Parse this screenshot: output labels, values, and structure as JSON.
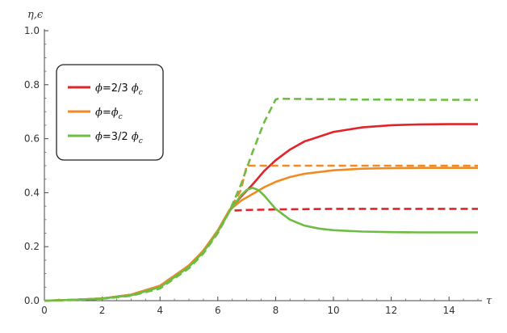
{
  "chart_data": {
    "type": "line",
    "title": "",
    "xlabel": "τ",
    "ylabel": "η,ϵ",
    "xlim": [
      0,
      15
    ],
    "ylim": [
      0,
      1.0
    ],
    "x_ticks": [
      0,
      2,
      4,
      6,
      8,
      10,
      12,
      14
    ],
    "x_tick_labels": [
      "0",
      "2",
      "4",
      "6",
      "8",
      "10",
      "12",
      "14"
    ],
    "y_ticks": [
      0,
      0.2,
      0.4,
      0.6,
      0.8,
      1.0
    ],
    "y_tick_labels": [
      "0.0",
      "0.2",
      "0.4",
      "0.6",
      "0.8",
      "1.0"
    ],
    "grid": false,
    "legend_position": "top-left",
    "legend": [
      {
        "var": "ϕ",
        "eq": "=2/3 ",
        "sym": "ϕ",
        "sub": "c",
        "color": "#e0242a"
      },
      {
        "var": "ϕ",
        "eq": "=",
        "sym": "ϕ",
        "sub": "c",
        "color": "#f28a24"
      },
      {
        "var": "ϕ",
        "eq": "=3/2 ",
        "sym": "ϕ",
        "sub": "c",
        "color": "#6ebc43"
      }
    ],
    "series": [
      {
        "color": "#e0242a",
        "style": "solid",
        "x": [
          0,
          1,
          2,
          3,
          4,
          5,
          5.5,
          6,
          6.4,
          6.8,
          7.2,
          7.6,
          8,
          8.5,
          9,
          10,
          11,
          12,
          13,
          14,
          15
        ],
        "y": [
          0.0,
          0.003,
          0.008,
          0.022,
          0.055,
          0.13,
          0.185,
          0.26,
          0.335,
          0.385,
          0.43,
          0.48,
          0.52,
          0.56,
          0.59,
          0.625,
          0.642,
          0.65,
          0.653,
          0.654,
          0.654
        ]
      },
      {
        "color": "#e0242a",
        "style": "dashed",
        "x": [
          0,
          1,
          2,
          3,
          4,
          5,
          5.5,
          6,
          6.4,
          6.6,
          7,
          8,
          9,
          10,
          11,
          12,
          13,
          14,
          15
        ],
        "y": [
          0.0,
          0.003,
          0.008,
          0.022,
          0.055,
          0.13,
          0.185,
          0.26,
          0.333,
          0.334,
          0.336,
          0.338,
          0.339,
          0.34,
          0.34,
          0.34,
          0.34,
          0.34,
          0.34
        ]
      },
      {
        "color": "#f28a24",
        "style": "solid",
        "x": [
          0,
          1,
          2,
          3,
          4,
          5,
          5.5,
          6,
          6.4,
          6.8,
          7.2,
          7.6,
          8,
          8.5,
          9,
          10,
          11,
          12,
          13,
          14,
          15
        ],
        "y": [
          0.0,
          0.003,
          0.008,
          0.022,
          0.055,
          0.13,
          0.185,
          0.26,
          0.335,
          0.37,
          0.395,
          0.42,
          0.44,
          0.458,
          0.47,
          0.483,
          0.489,
          0.491,
          0.492,
          0.492,
          0.492
        ]
      },
      {
        "color": "#f28a24",
        "style": "dashed",
        "x": [
          0,
          1,
          2,
          3,
          4,
          5,
          5.5,
          6,
          6.4,
          6.8,
          7.0,
          7.5,
          8,
          9,
          10,
          11,
          12,
          13,
          14,
          15
        ],
        "y": [
          0.0,
          0.003,
          0.008,
          0.022,
          0.055,
          0.13,
          0.185,
          0.26,
          0.335,
          0.41,
          0.5,
          0.5,
          0.5,
          0.5,
          0.5,
          0.5,
          0.5,
          0.5,
          0.5,
          0.5
        ]
      },
      {
        "color": "#6ebc43",
        "style": "solid",
        "x": [
          0,
          1,
          2,
          3,
          4,
          5,
          5.5,
          6,
          6.4,
          6.8,
          7.0,
          7.2,
          7.4,
          7.6,
          7.8,
          8,
          8.5,
          9,
          9.5,
          10,
          11,
          12,
          13,
          14,
          15
        ],
        "y": [
          0.0,
          0.003,
          0.008,
          0.02,
          0.05,
          0.125,
          0.18,
          0.255,
          0.33,
          0.39,
          0.41,
          0.418,
          0.41,
          0.39,
          0.365,
          0.34,
          0.3,
          0.278,
          0.267,
          0.261,
          0.256,
          0.254,
          0.253,
          0.253,
          0.253
        ]
      },
      {
        "color": "#6ebc43",
        "style": "dashed",
        "x": [
          0,
          1,
          2,
          3,
          4,
          5,
          5.5,
          6,
          6.4,
          6.8,
          7.2,
          7.6,
          8.0,
          8.1,
          9,
          10,
          11,
          12,
          13,
          14,
          15
        ],
        "y": [
          0.0,
          0.002,
          0.007,
          0.018,
          0.045,
          0.12,
          0.175,
          0.25,
          0.33,
          0.43,
          0.55,
          0.66,
          0.745,
          0.748,
          0.747,
          0.746,
          0.745,
          0.745,
          0.744,
          0.744,
          0.744
        ]
      }
    ]
  }
}
